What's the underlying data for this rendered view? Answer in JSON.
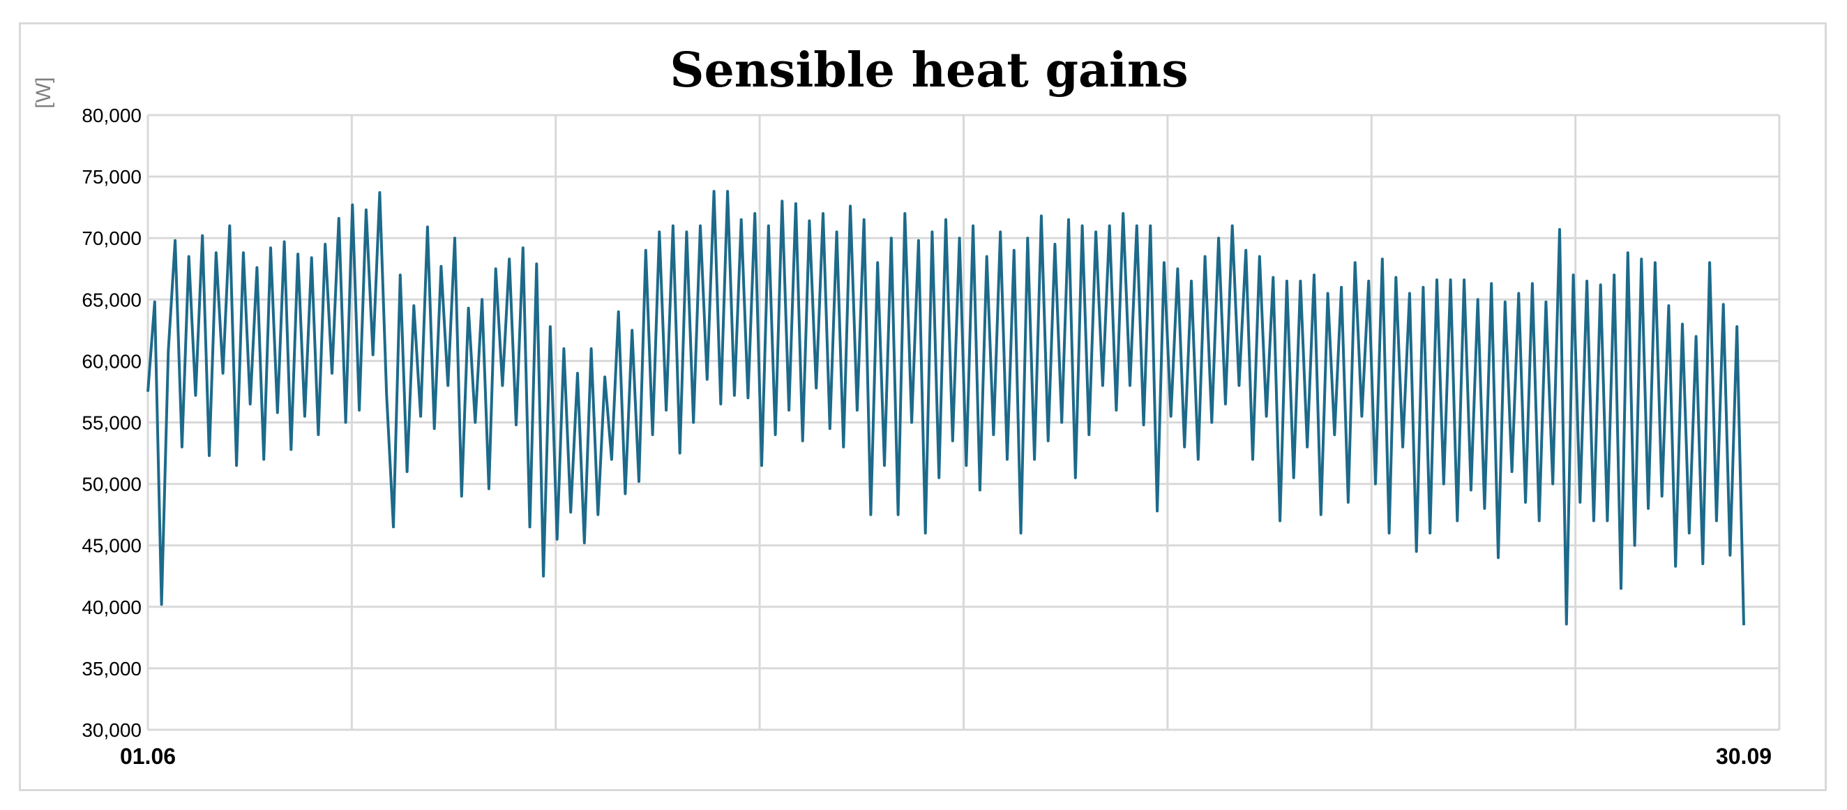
{
  "chart_data": {
    "type": "line",
    "title": "Sensible heat gains",
    "ylabel": "[W]",
    "xlabel": "",
    "ylim": [
      30000,
      80000
    ],
    "yticks": [
      30000,
      35000,
      40000,
      45000,
      50000,
      55000,
      60000,
      65000,
      70000,
      75000,
      80000
    ],
    "ytick_labels": [
      "30,000",
      "35,000",
      "40,000",
      "45,000",
      "50,000",
      "55,000",
      "60,000",
      "65,000",
      "70,000",
      "75,000",
      "80,000"
    ],
    "xtick_labels": [
      {
        "day": 0,
        "label": "01.06"
      },
      {
        "day": 121,
        "label": "30.09"
      }
    ],
    "x_unit": "day index from 01.06",
    "grid": true,
    "legend": "none",
    "color": "#1d6a8a",
    "series": [
      {
        "values": [
          57500,
          64800,
          40200,
          60800,
          69800,
          53000,
          68500,
          57200,
          70200,
          52300,
          68800,
          59000,
          71000,
          51500,
          68800,
          56500,
          67600,
          52000,
          69200,
          55800,
          69700,
          52800,
          68700,
          55500,
          68400,
          54000,
          69500,
          59000,
          71600,
          55000,
          72700,
          56000,
          72300,
          60500,
          73700,
          57300,
          46500,
          67000,
          51000,
          64500,
          55500,
          70900,
          54500,
          67700,
          58000,
          70000,
          49000,
          64300,
          55000,
          65000,
          49600,
          67500,
          58000,
          68300,
          54800,
          69200,
          46500,
          67900,
          42500,
          62800,
          45500,
          61000,
          47700,
          59000,
          45200,
          61000,
          47500,
          58700,
          52000,
          64000,
          49200,
          62500,
          50200,
          69000,
          54000,
          70500,
          56000,
          71000,
          52500,
          70500,
          55000,
          71000,
          58500,
          73800,
          56500,
          73800,
          57200,
          71500,
          57000,
          72000,
          51500,
          71000,
          54000,
          73000,
          56000,
          72800,
          53500,
          71400,
          57800,
          72000,
          54500,
          70500,
          53000,
          72600,
          56000,
          71500,
          47500,
          68000,
          51500,
          70000,
          47500,
          72000,
          55000,
          69800,
          46000,
          70500,
          50500,
          71500,
          53500,
          70000,
          51500,
          71000,
          49500,
          68500,
          54000,
          70500,
          52000,
          69000,
          46000,
          70000,
          52000,
          71800,
          53500,
          69500,
          55000,
          71500,
          50500,
          71000,
          54000,
          70500,
          58000,
          71000,
          56000,
          72000,
          58000,
          71000,
          54800,
          71000,
          47800,
          68000,
          55500,
          67500,
          53000,
          66500,
          52000,
          68500,
          55000,
          70000,
          56500,
          71000,
          58000,
          69000,
          52000,
          68500,
          55500,
          66800,
          47000,
          66500,
          50500,
          66500,
          53000,
          67000,
          47500,
          65500,
          54000,
          66000,
          48500,
          68000,
          55500,
          66500,
          50000,
          68300,
          46000,
          66800,
          53000,
          65500,
          44500,
          66000,
          46000,
          66600,
          50000,
          66600,
          47000,
          66600,
          49500,
          65000,
          48000,
          66300,
          44000,
          64800,
          51000,
          65500,
          48500,
          66300,
          47000,
          64800,
          50000,
          70700,
          38600,
          67000,
          48500,
          66500,
          47000,
          66200,
          47000,
          67000,
          41500,
          68800,
          45000,
          68300,
          48000,
          68000,
          49000,
          64500,
          43300,
          63000,
          46000,
          62000,
          43500,
          68000,
          47000,
          64600,
          44200,
          62800,
          38500
        ]
      }
    ]
  }
}
